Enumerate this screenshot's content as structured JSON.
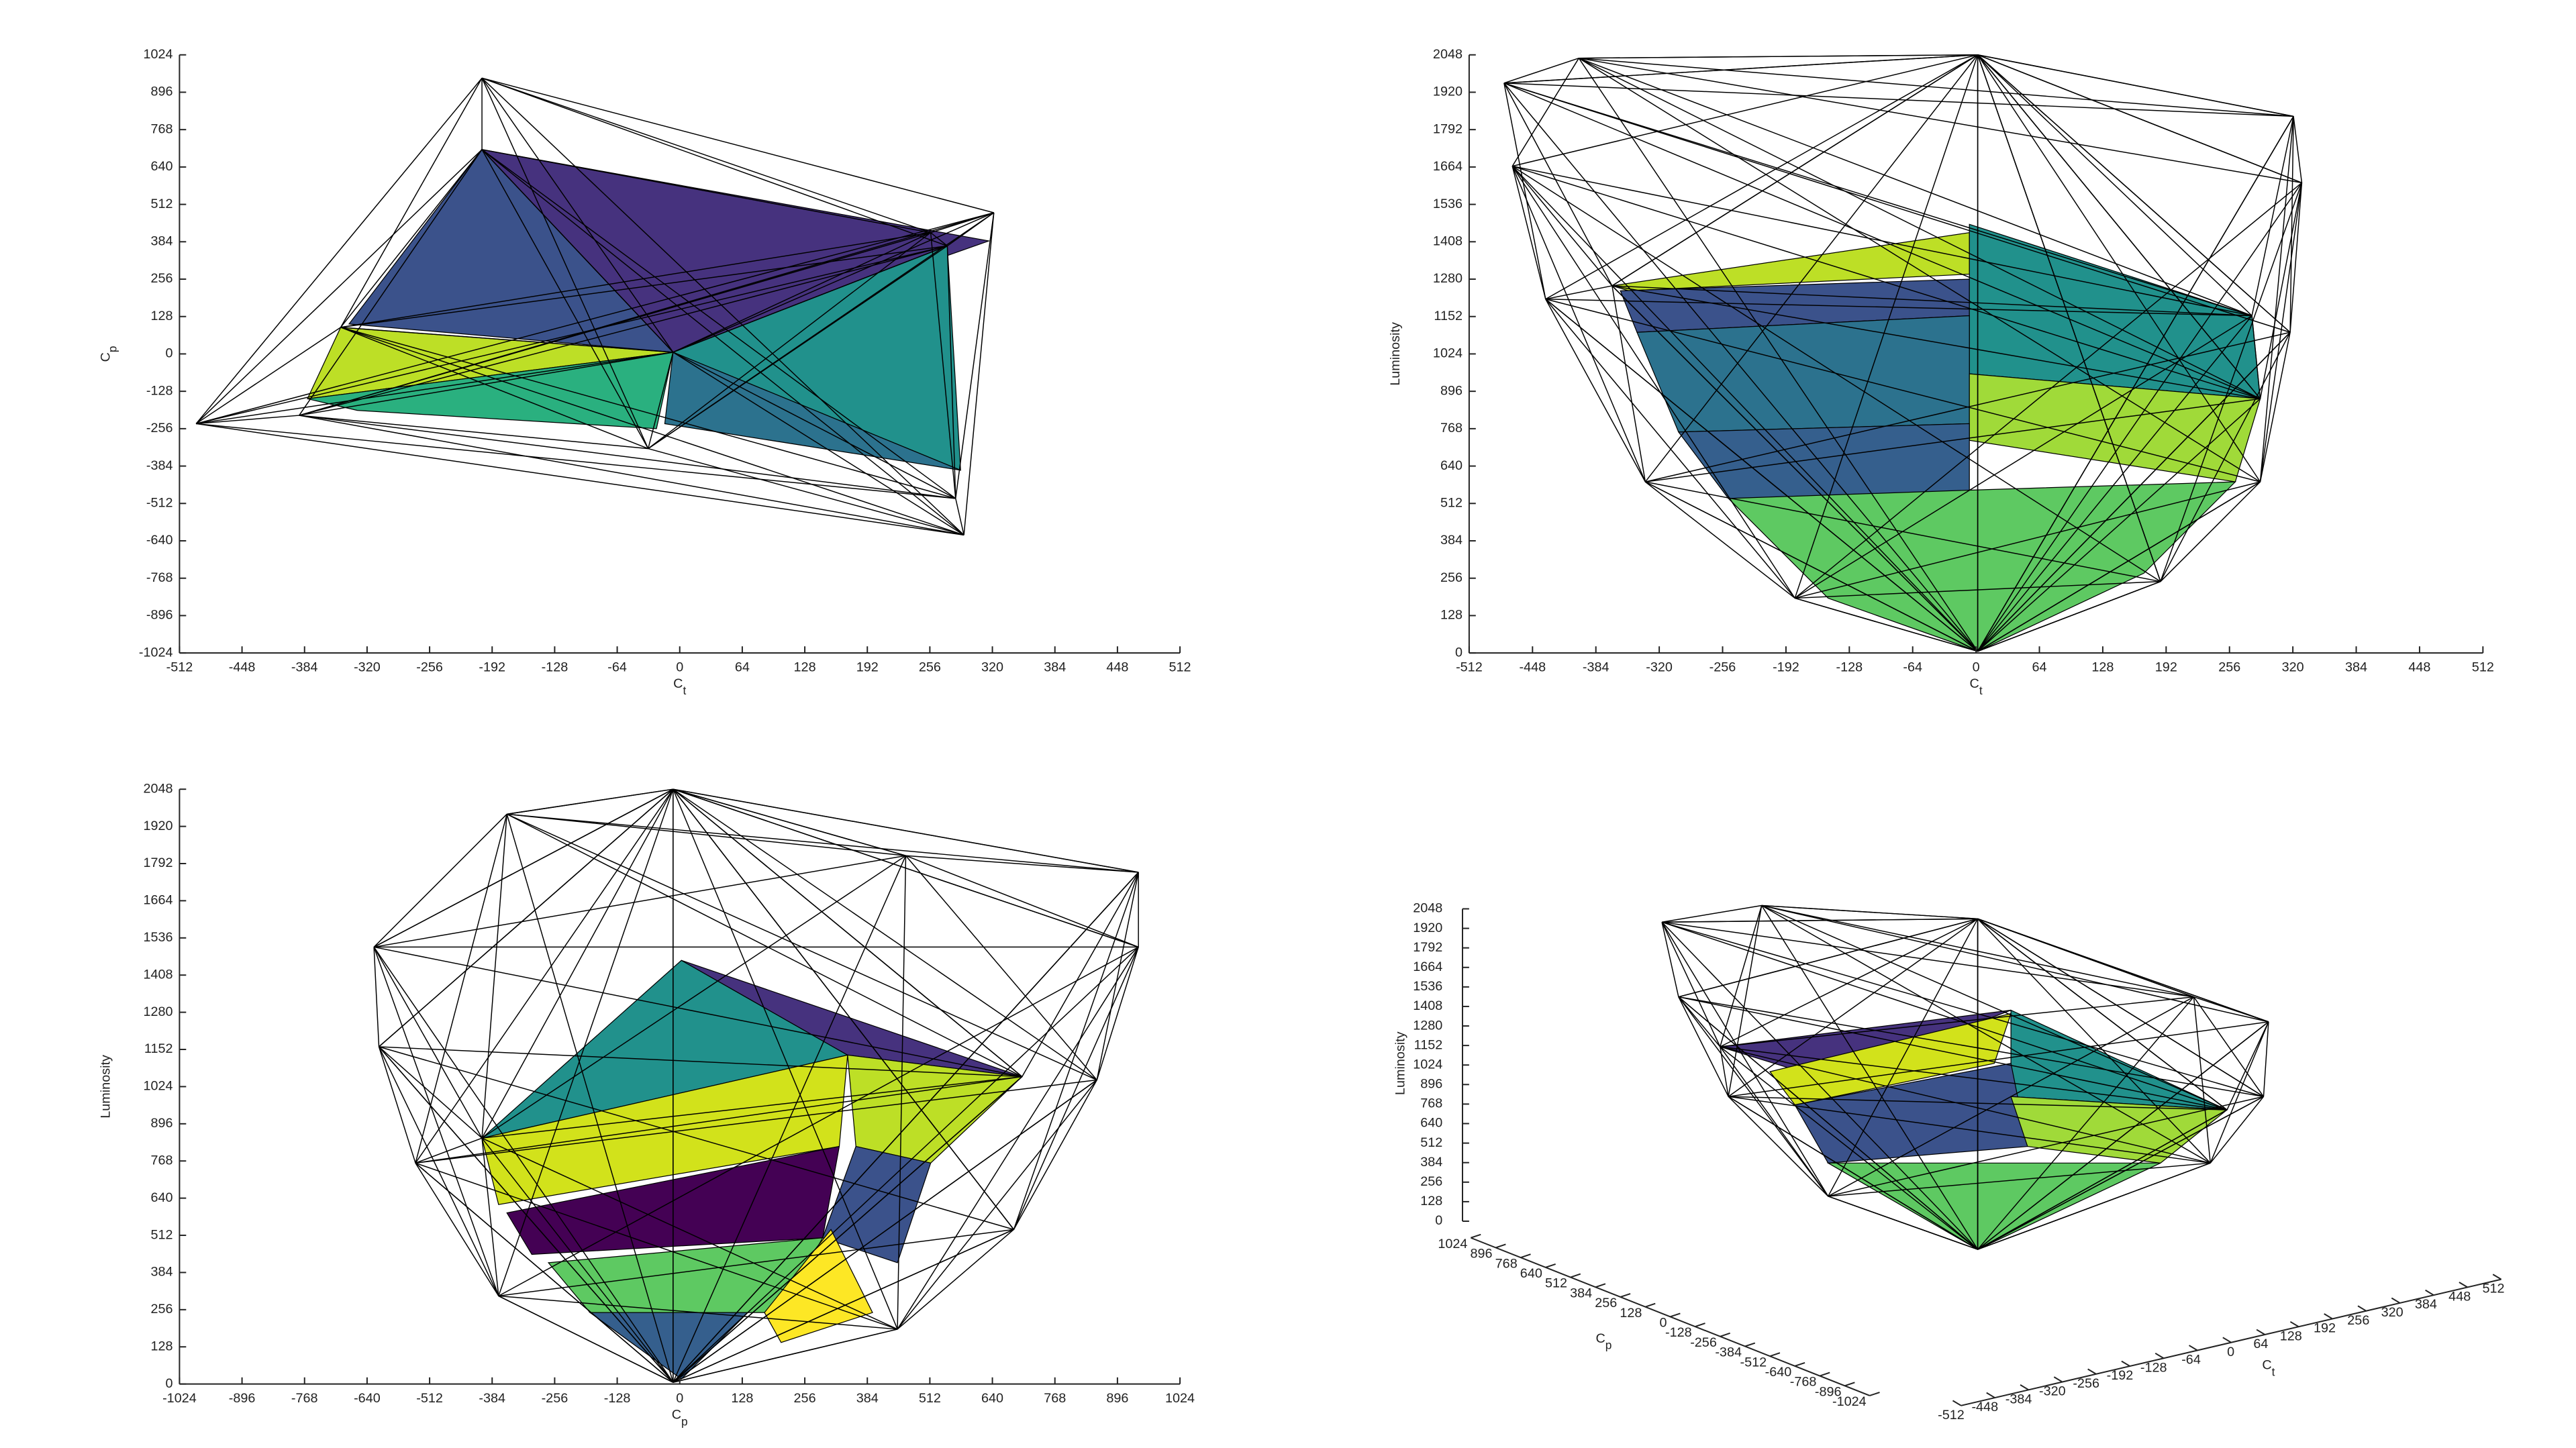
{
  "chart_data": [
    {
      "type": "mesh",
      "xlabel": {
        "base": "C",
        "subscript": "t"
      },
      "ylabel": {
        "base": "C",
        "subscript": "p"
      },
      "xlim": [
        -512,
        512
      ],
      "xticks": [
        -512,
        -448,
        -384,
        -320,
        -256,
        -192,
        -128,
        -64,
        0,
        64,
        128,
        192,
        256,
        320,
        384,
        448,
        512
      ],
      "ylim": [
        -1024,
        1024
      ],
      "yticks": [
        -1024,
        -896,
        -768,
        -640,
        -512,
        -384,
        -256,
        -128,
        0,
        128,
        256,
        384,
        512,
        640,
        768,
        896,
        1024
      ]
    },
    {
      "type": "mesh",
      "xlabel": {
        "base": "C",
        "subscript": "t"
      },
      "ylabel": "Luminosity",
      "xlim": [
        -512,
        512
      ],
      "xticks": [
        -512,
        -448,
        -384,
        -320,
        -256,
        -192,
        -128,
        -64,
        0,
        64,
        128,
        192,
        256,
        320,
        384,
        448,
        512
      ],
      "ylim": [
        0,
        2048
      ],
      "yticks": [
        0,
        128,
        256,
        384,
        512,
        640,
        768,
        896,
        1024,
        1152,
        1280,
        1408,
        1536,
        1664,
        1792,
        1920,
        2048
      ]
    },
    {
      "type": "mesh",
      "xlabel": {
        "base": "C",
        "subscript": "p"
      },
      "ylabel": "Luminosity",
      "xlim": [
        -1024,
        1024
      ],
      "xticks": [
        -1024,
        -896,
        -768,
        -640,
        -512,
        -384,
        -256,
        -128,
        0,
        128,
        256,
        384,
        512,
        640,
        768,
        896,
        1024
      ],
      "ylim": [
        0,
        2048
      ],
      "yticks": [
        0,
        128,
        256,
        384,
        512,
        640,
        768,
        896,
        1024,
        1152,
        1280,
        1408,
        1536,
        1664,
        1792,
        1920,
        2048
      ]
    },
    {
      "type": "mesh3d",
      "xlabel": {
        "base": "C",
        "subscript": "t"
      },
      "ylabel": {
        "base": "C",
        "subscript": "p"
      },
      "zlabel": "Luminosity",
      "xlim": [
        -512,
        512
      ],
      "xticks": [
        -512,
        -448,
        -384,
        -320,
        -256,
        -192,
        -128,
        -64,
        0,
        64,
        128,
        192,
        256,
        320,
        384,
        448,
        512
      ],
      "ylim": [
        -1024,
        1024
      ],
      "yticks": [
        -1024,
        -896,
        -768,
        -640,
        -512,
        -384,
        -256,
        -128,
        0,
        128,
        256,
        384,
        512,
        640,
        768,
        896,
        1024
      ],
      "zlim": [
        0,
        2048
      ],
      "zticks": [
        0,
        128,
        256,
        384,
        512,
        640,
        768,
        896,
        1024,
        1152,
        1280,
        1408,
        1536,
        1664,
        1792,
        1920,
        2048
      ]
    }
  ]
}
